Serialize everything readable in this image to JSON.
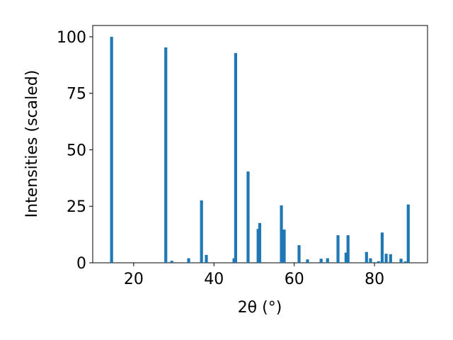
{
  "chart_data": {
    "type": "bar",
    "x_label": "2θ (°)",
    "y_label": "Intensities (scaled)",
    "x": [
      14.5,
      28.0,
      29.5,
      33.7,
      36.9,
      38.1,
      45.0,
      45.4,
      48.5,
      51.0,
      51.4,
      56.8,
      57.5,
      61.2,
      63.3,
      66.7,
      68.3,
      70.9,
      72.9,
      73.4,
      78.0,
      79.0,
      81.0,
      81.9,
      82.9,
      84.0,
      86.6,
      87.7,
      88.4
    ],
    "values": [
      100,
      95.3,
      0.9,
      2,
      27.6,
      3.5,
      2,
      92.8,
      40.4,
      15,
      17.6,
      25.4,
      14.7,
      7.8,
      1.5,
      1.8,
      2,
      12.2,
      4.5,
      12.2,
      4.8,
      2,
      0.7,
      13.4,
      4,
      3.8,
      1.8,
      0.6,
      25.8
    ],
    "color": "#1f77b4",
    "xlim": [
      9.8,
      93.2
    ],
    "xticks": [
      20,
      40,
      60,
      80
    ],
    "ylim": [
      0,
      105
    ],
    "yticks": [
      0,
      25,
      50,
      75,
      100
    ],
    "grid": false
  }
}
